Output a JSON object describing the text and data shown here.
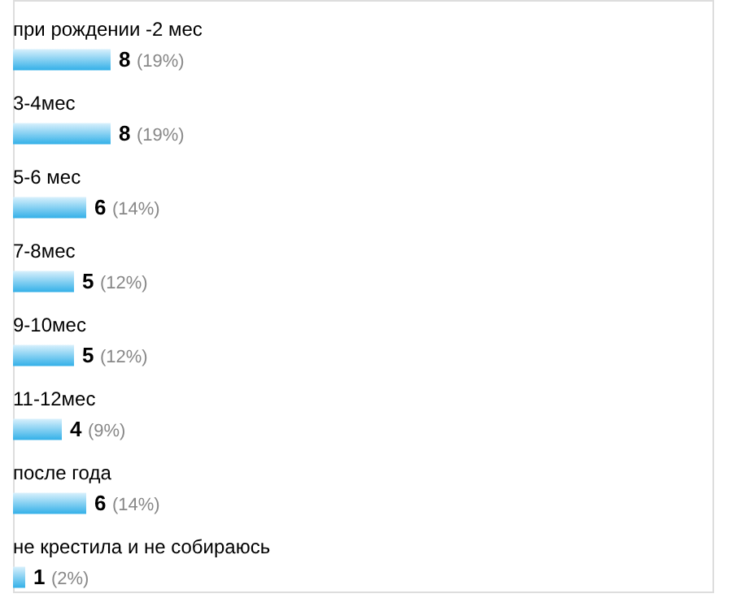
{
  "chart_data": {
    "type": "bar",
    "orientation": "horizontal",
    "categories": [
      "при рождении -2 мес",
      "3-4мес",
      "5-6 мес",
      "7-8мес",
      "9-10мес",
      "11-12мес",
      "после года",
      "не крестила и не собираюсь"
    ],
    "values": [
      8,
      8,
      6,
      5,
      5,
      4,
      6,
      1
    ],
    "annotations": [
      {
        "text": "(19%)",
        "x": 8,
        "y": "при рождении -2 мес"
      },
      {
        "text": "(19%)",
        "x": 8,
        "y": "3-4мес"
      },
      {
        "text": "(14%)",
        "x": 6,
        "y": "5-6 мес"
      },
      {
        "text": "(12%)",
        "x": 5,
        "y": "7-8мес"
      },
      {
        "text": "(12%)",
        "x": 5,
        "y": "9-10мес"
      },
      {
        "text": "(9%)",
        "x": 4,
        "y": "11-12мес"
      },
      {
        "text": "(14%)",
        "x": 6,
        "y": "после года"
      },
      {
        "text": "(2%)",
        "x": 1,
        "y": "не крестила и не собираюсь"
      }
    ],
    "color": "#33b0e8",
    "data_labels": true,
    "grid": false
  }
}
